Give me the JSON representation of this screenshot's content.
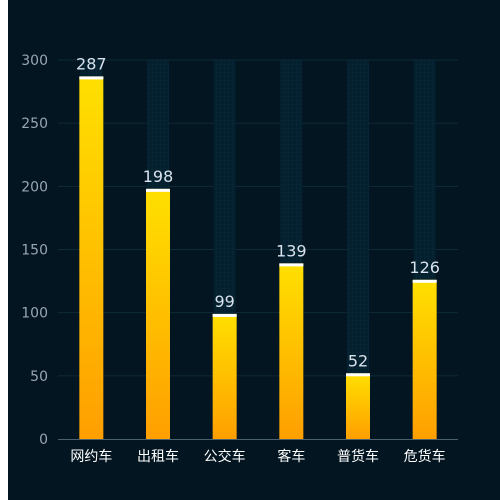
{
  "chart_data": {
    "type": "bar",
    "categories": [
      "网约车",
      "出租车",
      "公交车",
      "客车",
      "普货车",
      "危货车"
    ],
    "values": [
      287,
      198,
      99,
      139,
      52,
      126
    ],
    "title": "",
    "xlabel": "",
    "ylabel": "",
    "ylim": [
      0,
      300
    ],
    "yticks": [
      0,
      50,
      100,
      150,
      200,
      250,
      300
    ],
    "grid": true,
    "legend": "none",
    "data_labels": true
  },
  "colors": {
    "background": "#021520",
    "bar_top": "#ffe000",
    "bar_bottom": "#ff9f00",
    "bar_cap": "#ffffff",
    "grid": "#0f2a38",
    "axis": "#4a6270"
  }
}
